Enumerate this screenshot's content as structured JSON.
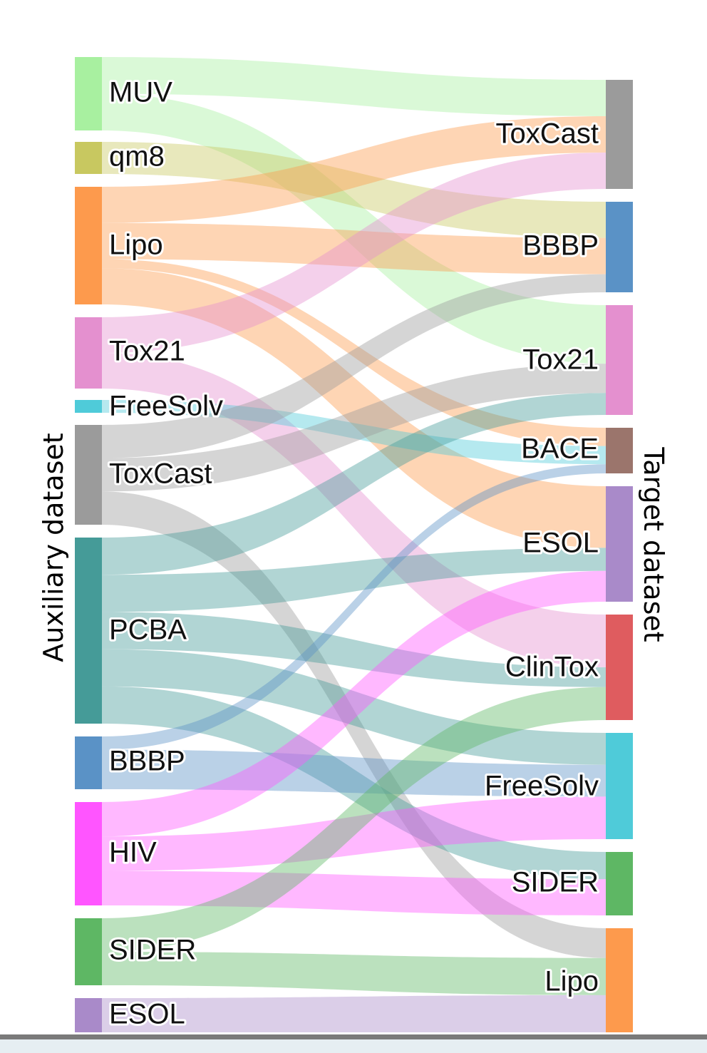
{
  "axis": {
    "left_title": "Auxiliary dataset",
    "right_title": "Target dataset"
  },
  "colors": {
    "MUV": "#a8f0a0",
    "qm8": "#c8c860",
    "Lipo": "#fd9a4d",
    "Tox21": "#e490cf",
    "FreeSolv": "#4fcbd9",
    "ToxCast": "#9b9b9b",
    "PCBA": "#459b98",
    "BBBP": "#5a92c6",
    "HIV": "#ff55ff",
    "SIDER": "#5eb764",
    "ESOL": "#a98ac9",
    "BACE": "#9b756c",
    "ClinTox": "#df5c5f"
  },
  "chart_data": {
    "type": "sankey",
    "source_nodes": [
      {
        "name": "MUV",
        "label": "MUV"
      },
      {
        "name": "qm8",
        "label": "qm8"
      },
      {
        "name": "Lipo",
        "label": "Lipo"
      },
      {
        "name": "Tox21",
        "label": "Tox21"
      },
      {
        "name": "FreeSolv",
        "label": "FreeSolv"
      },
      {
        "name": "ToxCast",
        "label": "ToxCast"
      },
      {
        "name": "PCBA",
        "label": "PCBA"
      },
      {
        "name": "BBBP",
        "label": "BBBP"
      },
      {
        "name": "HIV",
        "label": "HIV"
      },
      {
        "name": "SIDER",
        "label": "SIDER"
      },
      {
        "name": "ESOL",
        "label": "ESOL"
      }
    ],
    "target_nodes": [
      {
        "name": "ToxCast",
        "label": "ToxCast"
      },
      {
        "name": "BBBP",
        "label": "BBBP"
      },
      {
        "name": "Tox21",
        "label": "Tox21"
      },
      {
        "name": "BACE",
        "label": "BACE"
      },
      {
        "name": "ESOL",
        "label": "ESOL"
      },
      {
        "name": "ClinTox",
        "label": "ClinTox"
      },
      {
        "name": "FreeSolv",
        "label": "FreeSolv"
      },
      {
        "name": "SIDER",
        "label": "SIDER"
      },
      {
        "name": "Lipo",
        "label": "Lipo"
      }
    ],
    "links": [
      {
        "source": "MUV",
        "target": "ToxCast",
        "value": 4
      },
      {
        "source": "MUV",
        "target": "Tox21",
        "value": 4
      },
      {
        "source": "qm8",
        "target": "BBBP",
        "value": 4
      },
      {
        "source": "Lipo",
        "target": "ToxCast",
        "value": 4
      },
      {
        "source": "Lipo",
        "target": "BBBP",
        "value": 4
      },
      {
        "source": "Lipo",
        "target": "ESOL",
        "value": 4
      },
      {
        "source": "Lipo",
        "target": "BACE",
        "value": 1
      },
      {
        "source": "Tox21",
        "target": "ToxCast",
        "value": 4
      },
      {
        "source": "Tox21",
        "target": "ClinTox",
        "value": 4
      },
      {
        "source": "FreeSolv",
        "target": "BACE",
        "value": 1
      },
      {
        "source": "ToxCast",
        "target": "BBBP",
        "value": 2
      },
      {
        "source": "ToxCast",
        "target": "Tox21",
        "value": 2
      },
      {
        "source": "ToxCast",
        "target": "Lipo",
        "value": 2
      },
      {
        "source": "PCBA",
        "target": "Tox21",
        "value": 1.5
      },
      {
        "source": "PCBA",
        "target": "ESOL",
        "value": 1.5
      },
      {
        "source": "PCBA",
        "target": "ClinTox",
        "value": 1.5
      },
      {
        "source": "PCBA",
        "target": "FreeSolv",
        "value": 1.5
      },
      {
        "source": "PCBA",
        "target": "SIDER",
        "value": 1.5
      },
      {
        "source": "BBBP",
        "target": "BACE",
        "value": 0.5
      },
      {
        "source": "BBBP",
        "target": "FreeSolv",
        "value": 1.5
      },
      {
        "source": "HIV",
        "target": "ESOL",
        "value": 2
      },
      {
        "source": "HIV",
        "target": "FreeSolv",
        "value": 2
      },
      {
        "source": "HIV",
        "target": "SIDER",
        "value": 2
      },
      {
        "source": "SIDER",
        "target": "ClinTox",
        "value": 2.5
      },
      {
        "source": "SIDER",
        "target": "Lipo",
        "value": 2.5
      },
      {
        "source": "ESOL",
        "target": "Lipo",
        "value": 2.5
      }
    ]
  }
}
